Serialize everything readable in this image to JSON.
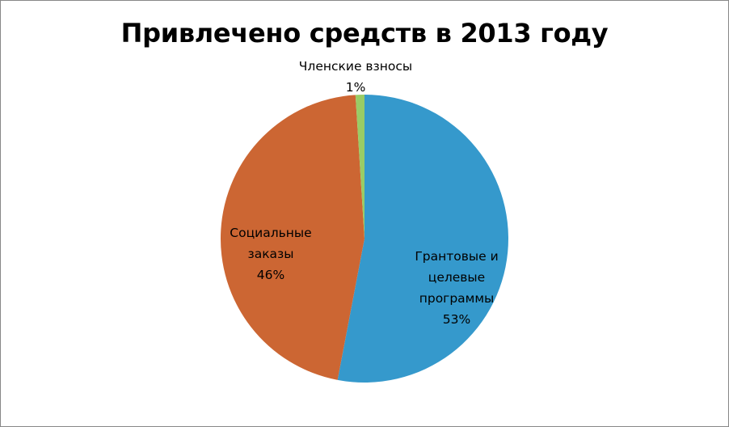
{
  "chart_data": {
    "type": "pie",
    "title": "Привлечено средств в 2013 году",
    "slices": [
      {
        "name": "Грантовые и целевые программы",
        "name_lines": [
          "Грантовые и",
          "целевые",
          "программы"
        ],
        "value": 53,
        "label": "53%",
        "color": "#3599CC"
      },
      {
        "name": "Социальные заказы",
        "name_lines": [
          "Социальные",
          "заказы"
        ],
        "value": 46,
        "label": "46%",
        "color": "#CC6633"
      },
      {
        "name": "Членские взносы",
        "name_lines": [
          "Членские взносы"
        ],
        "value": 1,
        "label": "1%",
        "color": "#99CC66"
      }
    ],
    "start_angle_deg": 0,
    "direction": "clockwise",
    "legend": "none"
  }
}
